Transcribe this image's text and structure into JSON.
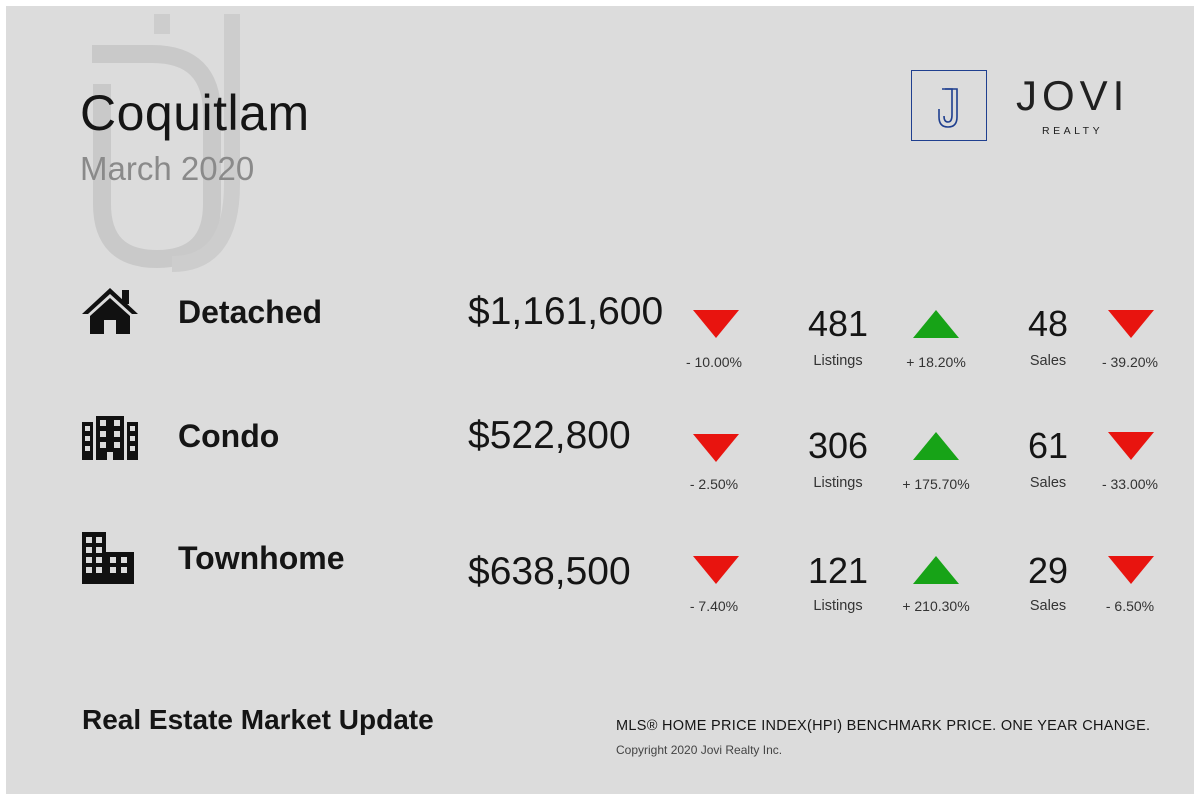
{
  "header": {
    "city": "Coquitlam",
    "period": "March 2020"
  },
  "brand": {
    "monogram": "J",
    "name": "JOVI",
    "tagline": "REALTY",
    "color": "#1f3f8f"
  },
  "colors": {
    "down": "#e8140f",
    "up": "#17a317"
  },
  "rows": [
    {
      "icon": "house-icon",
      "type": "Detached",
      "price": "$1,161,600",
      "price_dir": "down",
      "price_change": "- 10.00%",
      "listings": "481",
      "listings_label": "Listings",
      "listings_dir": "up",
      "listings_change": "+ 18.20%",
      "sales": "48",
      "sales_label": "Sales",
      "sales_dir": "down",
      "sales_change": "- 39.20%"
    },
    {
      "icon": "condo-building-icon",
      "type": "Condo",
      "price": "$522,800",
      "price_dir": "down",
      "price_change": "- 2.50%",
      "listings": "306",
      "listings_label": "Listings",
      "listings_dir": "up",
      "listings_change": "+ 175.70%",
      "sales": "61",
      "sales_label": "Sales",
      "sales_dir": "down",
      "sales_change": "- 33.00%"
    },
    {
      "icon": "townhome-buildings-icon",
      "type": "Townhome",
      "price": "$638,500",
      "price_dir": "down",
      "price_change": "- 7.40%",
      "listings": "121",
      "listings_label": "Listings",
      "listings_dir": "up",
      "listings_change": "+ 210.30%",
      "sales": "29",
      "sales_label": "Sales",
      "sales_dir": "down",
      "sales_change": "- 6.50%"
    }
  ],
  "footer": {
    "title": "Real Estate Market Update",
    "note": "MLS® HOME PRICE INDEX(HPI) BENCHMARK PRICE. ONE YEAR CHANGE.",
    "copyright": "Copyright 2020 Jovi Realty Inc."
  }
}
